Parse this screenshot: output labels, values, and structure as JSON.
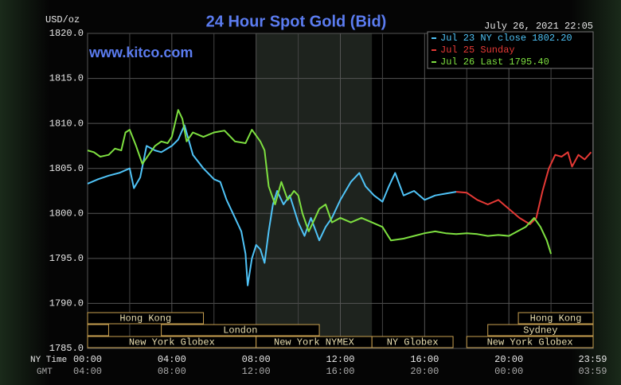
{
  "chart_data": {
    "type": "line",
    "title": "24 Hour Spot Gold (Bid)",
    "subtitle": "www.kitco.com",
    "y_label": "USD/oz",
    "timestamp": "July 26, 2021 22:05",
    "x_label": "NY Time",
    "x2_label": "GMT",
    "xlim": [
      0,
      24
    ],
    "xticks": [
      {
        "value": 0,
        "label": "00:00"
      },
      {
        "value": 4,
        "label": "04:00"
      },
      {
        "value": 8,
        "label": "08:00"
      },
      {
        "value": 12,
        "label": "12:00"
      },
      {
        "value": 16,
        "label": "16:00"
      },
      {
        "value": 20,
        "label": "20:00"
      },
      {
        "value": 23.98,
        "label": "23:59"
      }
    ],
    "x2ticks": [
      {
        "value": 0,
        "label": "04:00"
      },
      {
        "value": 4,
        "label": "08:00"
      },
      {
        "value": 8,
        "label": "12:00"
      },
      {
        "value": 12,
        "label": "16:00"
      },
      {
        "value": 16,
        "label": "20:00"
      },
      {
        "value": 20,
        "label": "00:00"
      },
      {
        "value": 23.98,
        "label": "03:59"
      }
    ],
    "ylim": [
      1785,
      1820
    ],
    "yticks": [
      {
        "value": 1785,
        "label": "1785.0"
      },
      {
        "value": 1790,
        "label": "1790.0"
      },
      {
        "value": 1795,
        "label": "1795.0"
      },
      {
        "value": 1800,
        "label": "1800.0"
      },
      {
        "value": 1805,
        "label": "1805.0"
      },
      {
        "value": 1810,
        "label": "1810.0"
      },
      {
        "value": 1815,
        "label": "1815.0"
      },
      {
        "value": 1820,
        "label": "1820.0"
      }
    ],
    "grid": true,
    "legend": "top-right",
    "series": [
      {
        "name": "Jul 23 NY close 1802.20",
        "color": "#4fc3f7",
        "x": [
          0,
          0.5,
          1,
          1.5,
          2,
          2.2,
          2.5,
          2.8,
          3.2,
          3.5,
          4,
          4.3,
          4.6,
          5,
          5.5,
          6,
          6.3,
          6.6,
          7,
          7.3,
          7.5,
          7.6,
          7.8,
          8,
          8.2,
          8.4,
          8.6,
          8.8,
          9,
          9.3,
          9.6,
          10,
          10.3,
          10.6,
          11,
          11.3,
          11.6,
          12,
          12.5,
          12.9,
          13.2,
          13.6,
          14,
          14.3,
          14.6,
          15,
          15.5,
          16,
          16.5,
          17,
          17.5
        ],
        "values": [
          1803.3,
          1803.8,
          1804.2,
          1804.5,
          1805.0,
          1802.8,
          1804.0,
          1807.5,
          1807.0,
          1806.8,
          1807.5,
          1808.2,
          1809.8,
          1806.5,
          1805.0,
          1803.8,
          1803.5,
          1801.5,
          1799.5,
          1798.0,
          1795.5,
          1792.0,
          1795.0,
          1796.5,
          1796.0,
          1794.5,
          1798.0,
          1801.0,
          1802.5,
          1801.0,
          1802.0,
          1799.0,
          1797.5,
          1799.5,
          1797.0,
          1798.5,
          1799.5,
          1801.5,
          1803.5,
          1804.5,
          1803.0,
          1802.0,
          1801.3,
          1803.0,
          1804.5,
          1802.0,
          1802.5,
          1801.5,
          1802.0,
          1802.2,
          1802.4
        ]
      },
      {
        "name": "Jul 25 Sunday",
        "color": "#e53935",
        "x": [
          17.5,
          18,
          18.5,
          19,
          19.5,
          20,
          20.5,
          21,
          21.3,
          21.6,
          21.9,
          22.2,
          22.5,
          22.8,
          23,
          23.3,
          23.6,
          23.9
        ],
        "values": [
          1802.4,
          1802.3,
          1801.5,
          1801.0,
          1801.5,
          1800.5,
          1799.5,
          1798.8,
          1799.5,
          1802.5,
          1805.0,
          1806.5,
          1806.3,
          1806.8,
          1805.2,
          1806.5,
          1806.0,
          1806.8
        ]
      },
      {
        "name": "Jul 26 Last 1795.40",
        "color": "#7ee040",
        "x": [
          0,
          0.3,
          0.6,
          1,
          1.3,
          1.6,
          1.8,
          2,
          2.3,
          2.6,
          2.9,
          3.2,
          3.5,
          3.8,
          4,
          4.3,
          4.5,
          4.7,
          5,
          5.5,
          6,
          6.5,
          7,
          7.5,
          7.8,
          8.2,
          8.4,
          8.6,
          8.9,
          9.2,
          9.5,
          9.8,
          10,
          10.2,
          10.5,
          10.8,
          11,
          11.3,
          11.6,
          12,
          12.5,
          13,
          13.5,
          14,
          14.4,
          15,
          15.5,
          16,
          16.5,
          17,
          17.5,
          18,
          18.5,
          19,
          19.5,
          20,
          20.4,
          20.8,
          21.2,
          21.5,
          21.8,
          22
        ],
        "values": [
          1807.0,
          1806.8,
          1806.3,
          1806.5,
          1807.2,
          1807.0,
          1809.0,
          1809.3,
          1807.5,
          1805.5,
          1806.5,
          1807.5,
          1808.0,
          1807.8,
          1808.5,
          1811.5,
          1810.5,
          1808.0,
          1809.0,
          1808.5,
          1809.0,
          1809.2,
          1808.0,
          1807.8,
          1809.3,
          1808.0,
          1807.0,
          1803.0,
          1801.0,
          1803.5,
          1801.5,
          1802.5,
          1802.0,
          1800.0,
          1798.0,
          1799.5,
          1800.5,
          1801.0,
          1799.0,
          1799.5,
          1799.0,
          1799.5,
          1799.0,
          1798.5,
          1797.0,
          1797.2,
          1797.5,
          1797.8,
          1798.0,
          1797.8,
          1797.7,
          1797.8,
          1797.7,
          1797.5,
          1797.6,
          1797.5,
          1798.0,
          1798.5,
          1799.5,
          1798.5,
          1797.0,
          1795.5
        ]
      }
    ],
    "sessions": [
      {
        "name": "Hong Kong",
        "start": 0,
        "end": 5.5
      },
      {
        "name": "London",
        "start": 3.5,
        "end": 11
      },
      {
        "name": "New York Globex",
        "start": 0,
        "end": 8
      },
      {
        "name": "New York NYMEX",
        "start": 8,
        "end": 13.5
      },
      {
        "name": "NY Globex",
        "start": 13.5,
        "end": 17.35
      },
      {
        "name": "Hong Kong",
        "start": 20.45,
        "end": 24
      },
      {
        "name": "Sydney",
        "start": 19,
        "end": 24
      },
      {
        "name": "New York Globex",
        "start": 18,
        "end": 24
      }
    ]
  }
}
